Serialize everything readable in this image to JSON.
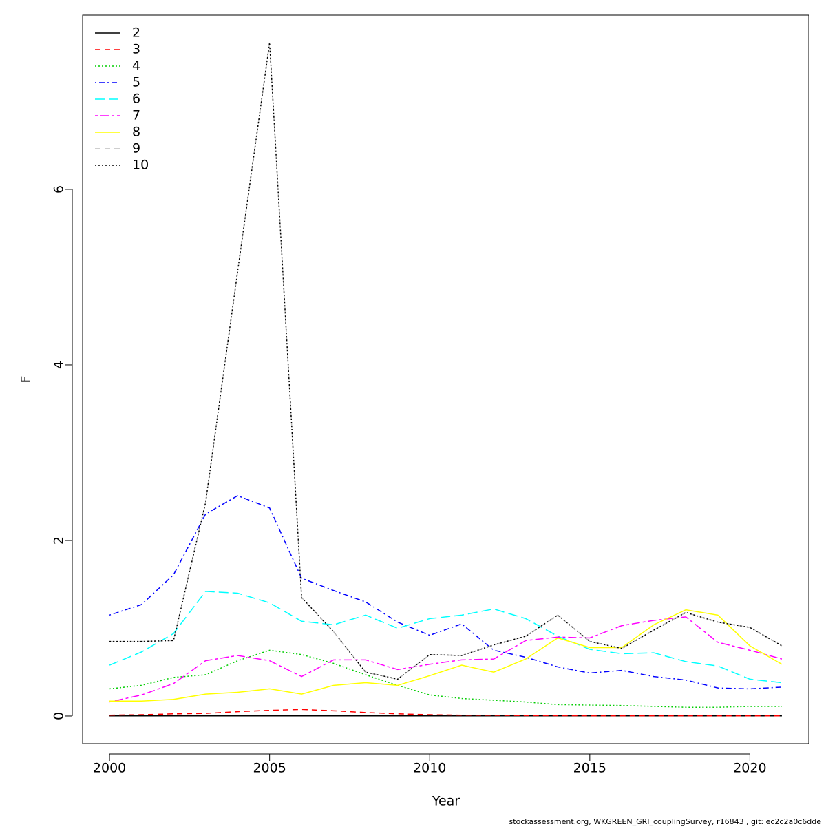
{
  "chart_data": {
    "type": "line",
    "x_label": "Year",
    "y_label": "F",
    "x": [
      2000,
      2001,
      2002,
      2003,
      2004,
      2005,
      2006,
      2007,
      2008,
      2009,
      2010,
      2011,
      2012,
      2013,
      2014,
      2015,
      2016,
      2017,
      2018,
      2019,
      2020,
      2021
    ],
    "xlim": [
      1999.16,
      2021.84
    ],
    "xticks": [
      2000,
      2005,
      2010,
      2015,
      2020
    ],
    "ylim": [
      -0.314,
      7.984
    ],
    "yticks": [
      0,
      2,
      4,
      6
    ],
    "legend": "top-left",
    "series": [
      {
        "name": "2",
        "color": "#000000",
        "dash": "solid",
        "values": [
          0.002,
          0.002,
          0.002,
          0.002,
          0.002,
          0.002,
          0.002,
          0.002,
          0.002,
          0.002,
          0.002,
          0.002,
          0.002,
          0.002,
          0.002,
          0.002,
          0.002,
          0.002,
          0.002,
          0.002,
          0.002,
          0.002
        ]
      },
      {
        "name": "3",
        "color": "#ff0000",
        "dash": "dashed",
        "values": [
          0.01,
          0.015,
          0.025,
          0.03,
          0.05,
          0.065,
          0.075,
          0.06,
          0.04,
          0.025,
          0.015,
          0.01,
          0.008,
          0.005,
          0.004,
          0.003,
          0.003,
          0.003,
          0.003,
          0.002,
          0.002,
          0.002
        ]
      },
      {
        "name": "4",
        "color": "#00cd00",
        "dash": "dotted",
        "values": [
          0.31,
          0.35,
          0.44,
          0.47,
          0.63,
          0.75,
          0.7,
          0.6,
          0.47,
          0.35,
          0.24,
          0.2,
          0.18,
          0.16,
          0.13,
          0.125,
          0.12,
          0.11,
          0.1,
          0.1,
          0.11,
          0.11
        ]
      },
      {
        "name": "5",
        "color": "#0000ff",
        "dash": "dotdash",
        "values": [
          1.15,
          1.27,
          1.61,
          2.3,
          2.51,
          2.37,
          1.57,
          1.43,
          1.3,
          1.07,
          0.92,
          1.05,
          0.75,
          0.67,
          0.56,
          0.49,
          0.52,
          0.45,
          0.41,
          0.32,
          0.31,
          0.33
        ]
      },
      {
        "name": "6",
        "color": "#00ffff",
        "dash": "longdash",
        "values": [
          0.58,
          0.73,
          0.94,
          1.42,
          1.4,
          1.29,
          1.08,
          1.04,
          1.15,
          1.0,
          1.11,
          1.15,
          1.22,
          1.11,
          0.91,
          0.76,
          0.71,
          0.72,
          0.62,
          0.57,
          0.42,
          0.38
        ]
      },
      {
        "name": "7",
        "color": "#ff00ff",
        "dash": "twodash",
        "values": [
          0.16,
          0.24,
          0.37,
          0.63,
          0.69,
          0.63,
          0.45,
          0.64,
          0.64,
          0.53,
          0.59,
          0.64,
          0.65,
          0.86,
          0.9,
          0.89,
          1.03,
          1.09,
          1.13,
          0.84,
          0.75,
          0.65
        ]
      },
      {
        "name": "8",
        "color": "#ffff00",
        "dash": "solid",
        "values": [
          0.17,
          0.17,
          0.19,
          0.25,
          0.27,
          0.31,
          0.25,
          0.35,
          0.38,
          0.35,
          0.46,
          0.58,
          0.5,
          0.65,
          0.89,
          0.78,
          0.78,
          1.04,
          1.21,
          1.15,
          0.8,
          0.59
        ]
      },
      {
        "name": "9",
        "color": "#bebebe",
        "dash": "dashed",
        "values": [
          0.85,
          0.85,
          0.86,
          2.43,
          5.06,
          7.67,
          1.35,
          0.96,
          0.5,
          0.42,
          0.7,
          0.69,
          0.81,
          0.91,
          1.15,
          0.85,
          0.77,
          0.98,
          1.18,
          1.07,
          1.01,
          0.8
        ]
      },
      {
        "name": "10",
        "color": "#000000",
        "dash": "dotted",
        "values": [
          0.85,
          0.85,
          0.86,
          2.43,
          5.06,
          7.67,
          1.35,
          0.96,
          0.5,
          0.42,
          0.7,
          0.69,
          0.81,
          0.91,
          1.15,
          0.85,
          0.77,
          0.98,
          1.18,
          1.07,
          1.01,
          0.8
        ]
      }
    ]
  },
  "footer": "stockassessment.org, WKGREEN_GRI_couplingSurvey, r16843 , git: ec2c2a0c6dde"
}
